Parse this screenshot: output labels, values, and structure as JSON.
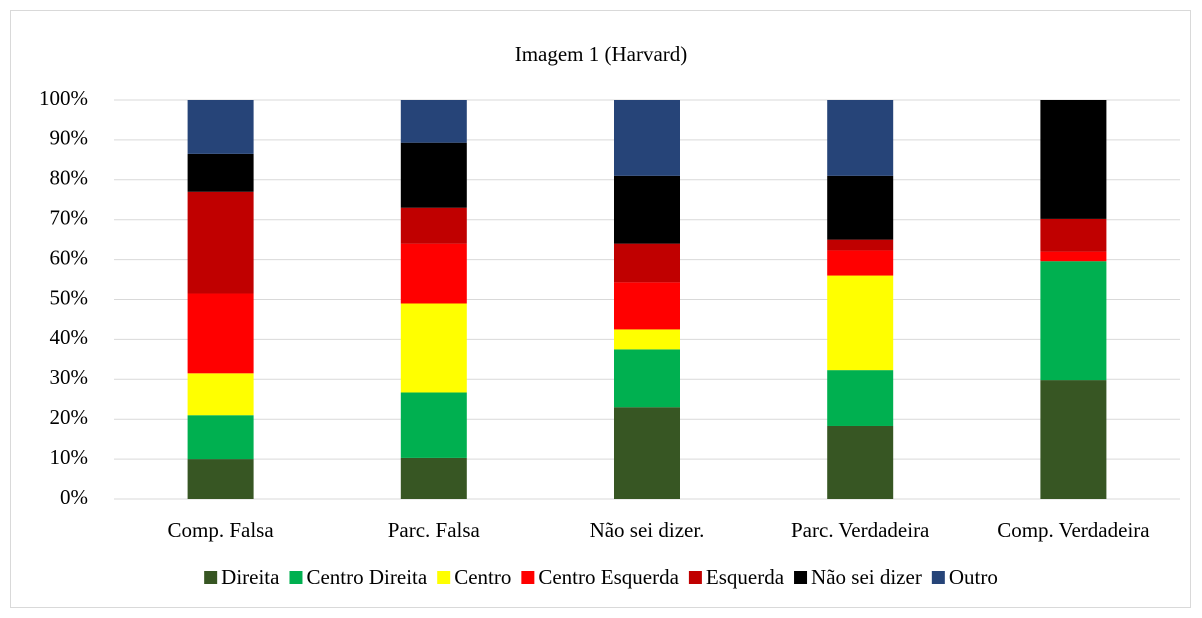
{
  "chart_data": {
    "type": "stacked_bar",
    "title": "Imagem 1 (Harvard)",
    "categories": [
      "Comp. Falsa",
      "Parc. Falsa",
      "Não sei dizer.",
      "Parc. Verdadeira",
      "Comp. Verdadeira"
    ],
    "series": [
      {
        "name": "Direita",
        "color": "#375623",
        "values": [
          10,
          10.3,
          23,
          18.3,
          29.8
        ]
      },
      {
        "name": "Centro Direita",
        "color": "#00b050",
        "values": [
          11,
          16.4,
          14.5,
          14,
          29.8
        ]
      },
      {
        "name": "Centro",
        "color": "#ffff00",
        "values": [
          10.5,
          22.3,
          5,
          23.7,
          0
        ]
      },
      {
        "name": "Centro Esquerda",
        "color": "#ff0000",
        "values": [
          20,
          15,
          11.8,
          6.3,
          2.4
        ]
      },
      {
        "name": "Esquerda",
        "color": "#c00000",
        "values": [
          25.5,
          9,
          9.7,
          2.7,
          8.2
        ]
      },
      {
        "name": "Não sei dizer",
        "color": "#000000",
        "values": [
          9.5,
          16.3,
          17,
          16,
          29.8
        ]
      },
      {
        "name": "Outro",
        "color": "#264478",
        "values": [
          13.5,
          10.7,
          19,
          19,
          0
        ]
      }
    ],
    "ylim": [
      0,
      100
    ],
    "yticks": [
      {
        "value": 0,
        "label": "0%"
      },
      {
        "value": 10,
        "label": "10%"
      },
      {
        "value": 20,
        "label": "20%"
      },
      {
        "value": 30,
        "label": "30%"
      },
      {
        "value": 40,
        "label": "40%"
      },
      {
        "value": 50,
        "label": "50%"
      },
      {
        "value": 60,
        "label": "60%"
      },
      {
        "value": 70,
        "label": "70%"
      },
      {
        "value": 80,
        "label": "80%"
      },
      {
        "value": 90,
        "label": "90%"
      },
      {
        "value": 100,
        "label": "100%"
      }
    ],
    "grid": true,
    "legend": "bottom"
  }
}
